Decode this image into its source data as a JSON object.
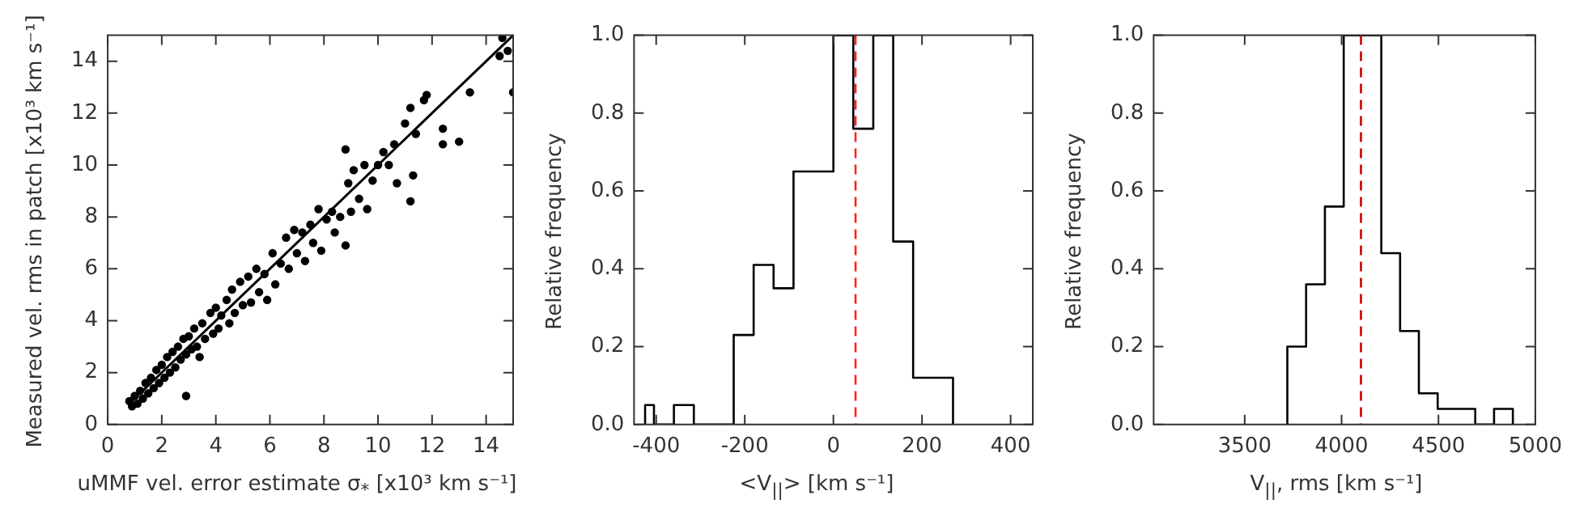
{
  "chart_data": [
    {
      "type": "scatter",
      "xlabel": "uMMF vel. error estimate σ$_{*}$ [x10³ km s⁻¹]",
      "ylabel": "Measured vel. rms in patch [x10³ km s⁻¹]",
      "xlim": [
        0,
        15
      ],
      "ylim": [
        0,
        15
      ],
      "xticks": [
        0,
        2,
        4,
        6,
        8,
        10,
        12,
        14
      ],
      "yticks": [
        0,
        2,
        4,
        6,
        8,
        10,
        12,
        14
      ],
      "grid": false,
      "legend": false,
      "series": [
        {
          "type": "scatter",
          "color": "#000000",
          "marker": "circle",
          "x": [
            0.8,
            0.9,
            1,
            1.1,
            1.2,
            1.3,
            1.4,
            1.5,
            1.6,
            1.7,
            1.8,
            1.9,
            2,
            2.1,
            2.2,
            2.3,
            2.4,
            2.5,
            2.6,
            2.7,
            2.8,
            2.9,
            2.9,
            3,
            3.1,
            3.2,
            3.3,
            3.4,
            3.5,
            3.6,
            3.8,
            3.9,
            4,
            4.1,
            4.2,
            4.4,
            4.5,
            4.6,
            4.7,
            4.9,
            5,
            5.2,
            5.3,
            5.5,
            5.6,
            5.8,
            5.9,
            6.1,
            6.2,
            6.4,
            6.6,
            6.7,
            6.9,
            7,
            7.2,
            7.3,
            7.5,
            7.6,
            7.8,
            7.9,
            8.1,
            8.3,
            8.4,
            8.6,
            8.8,
            8.8,
            8.9,
            9,
            9.1,
            9.3,
            9.5,
            9.6,
            9.8,
            10,
            10.2,
            10.4,
            10.6,
            10.7,
            11,
            11.2,
            11.2,
            11.3,
            11.4,
            11.7,
            11.8,
            12.4,
            12.4,
            13,
            13.4,
            14.5,
            14.6,
            14.8,
            15
          ],
          "values": [
            0.9,
            0.7,
            1.1,
            0.8,
            1.3,
            1,
            1.6,
            1.2,
            1.8,
            1.4,
            2.1,
            1.6,
            2.3,
            1.8,
            2.6,
            2,
            2.8,
            2.2,
            3,
            2.5,
            3.3,
            1.1,
            2.7,
            3.4,
            2.9,
            3.7,
            3,
            2.6,
            3.9,
            3.3,
            4.3,
            3.5,
            4.5,
            3.7,
            4.2,
            4.8,
            3.9,
            5.2,
            4.3,
            5.5,
            4.6,
            5.7,
            4.7,
            6,
            5.1,
            5.8,
            4.8,
            6.6,
            5.4,
            6.2,
            7.2,
            6,
            7.5,
            6.6,
            7.4,
            6.3,
            7.7,
            7,
            8.3,
            6.7,
            7.9,
            8.2,
            7.4,
            8,
            10.6,
            6.9,
            9.3,
            8.2,
            9.8,
            8.7,
            10,
            8.3,
            9.4,
            10,
            10.5,
            10,
            10.8,
            9.3,
            11.6,
            12.2,
            8.6,
            9.6,
            11.2,
            12.5,
            12.7,
            11.4,
            10.8,
            10.9,
            12.8,
            14.2,
            14.9,
            14.4,
            12.8
          ]
        },
        {
          "type": "line",
          "color": "#000000",
          "x": [
            0.8,
            15
          ],
          "values": [
            0.8,
            15
          ]
        }
      ]
    },
    {
      "type": "histogram",
      "xlabel": "<V$_{||}$> [km s⁻¹]",
      "ylabel": "Relative frequency",
      "color": "#000000",
      "xlim": [
        -450,
        450
      ],
      "ylim": [
        0,
        1
      ],
      "xticks": [
        -400,
        -200,
        0,
        200,
        400
      ],
      "yticks": [
        {
          "value": 0,
          "label": "0.0"
        },
        {
          "value": 0.2,
          "label": "0.2"
        },
        {
          "value": 0.4,
          "label": "0.4"
        },
        {
          "value": 0.6,
          "label": "0.6"
        },
        {
          "value": 0.8,
          "label": "0.8"
        },
        {
          "value": 1,
          "label": "1.0"
        }
      ],
      "grid": false,
      "legend": false,
      "bins": [
        -425,
        -405,
        -360,
        -315,
        -270,
        -225,
        -180,
        -135,
        -90,
        -45,
        0,
        45,
        90,
        135,
        180,
        225,
        270
      ],
      "values": [
        0.05,
        0,
        0.05,
        0,
        0,
        0.23,
        0.41,
        0.35,
        0.65,
        0.65,
        1,
        0.76,
        1,
        0.47,
        0.12,
        0.12
      ],
      "ref_lines": [
        {
          "axis": "x",
          "value": 50,
          "color": "#ff2020",
          "line_style": "dashed"
        }
      ]
    },
    {
      "type": "histogram",
      "xlabel": "V$_{||}$, rms  [km s⁻¹]",
      "ylabel": "Relative frequency",
      "color": "#000000",
      "xlim": [
        3030,
        5000
      ],
      "ylim": [
        0,
        1
      ],
      "xticks": [
        3500,
        4000,
        4500,
        5000
      ],
      "yticks": [
        {
          "value": 0,
          "label": "0.0"
        },
        {
          "value": 0.2,
          "label": "0.2"
        },
        {
          "value": 0.4,
          "label": "0.4"
        },
        {
          "value": 0.6,
          "label": "0.6"
        },
        {
          "value": 0.8,
          "label": "0.8"
        },
        {
          "value": 1,
          "label": "1.0"
        }
      ],
      "grid": false,
      "legend": false,
      "bins": [
        3720,
        3817,
        3914,
        4011,
        4108,
        4205,
        4302,
        4399,
        4496,
        4593,
        4690,
        4787,
        4884
      ],
      "values": [
        0.2,
        0.36,
        0.56,
        1,
        1,
        0.44,
        0.24,
        0.08,
        0.04,
        0.04,
        0,
        0.04
      ],
      "ref_lines": [
        {
          "axis": "x",
          "value": 4100,
          "color": "#cc0000",
          "line_style": "dashed"
        }
      ]
    }
  ]
}
